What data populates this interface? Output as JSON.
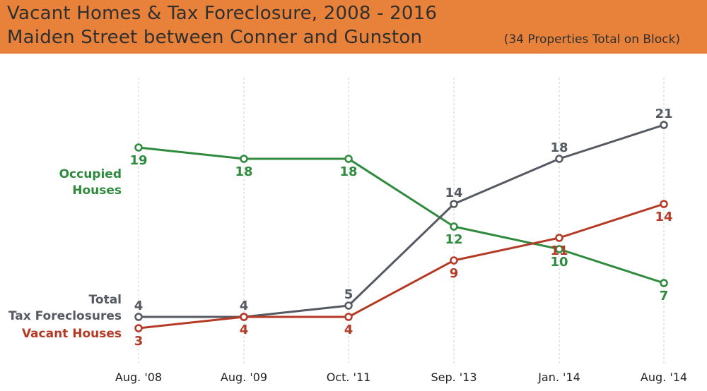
{
  "header": {
    "title": "Vacant Homes & Tax Foreclosure, 2008 - 2016",
    "subtitle": "Maiden Street between Conner and Gunston",
    "note": "(34 Properties Total on Block)"
  },
  "colors": {
    "banner": "#e8823a",
    "occupied": "#2e8b3e",
    "foreclosures": "#555a62",
    "vacant": "#b53a26",
    "grid": "#cfcfcf"
  },
  "chart_data": {
    "type": "line",
    "categories": [
      "Aug. '08",
      "Aug. '09",
      "Oct. '11",
      "Sep. '13",
      "Jan. '14",
      "Aug. '14"
    ],
    "ylim": [
      0,
      22
    ],
    "grid": "vertical dashed at each category",
    "legend": "inline labels at left",
    "series": [
      {
        "name": "Occupied Houses",
        "label_lines": [
          "Occupied",
          "Houses"
        ],
        "color": "#2e8b3e",
        "values": [
          19,
          18,
          18,
          12,
          10,
          7
        ],
        "label_pos": [
          "below",
          "below",
          "below",
          "below",
          "below",
          "below"
        ]
      },
      {
        "name": "Total Tax Foreclosures",
        "label_lines": [
          "Total",
          "Tax Foreclosures"
        ],
        "color": "#555a62",
        "values": [
          4,
          4,
          5,
          14,
          18,
          21
        ],
        "label_pos": [
          "above",
          "above",
          "above",
          "above",
          "above",
          "above"
        ]
      },
      {
        "name": "Vacant Houses",
        "label_lines": [
          "Vacant Houses"
        ],
        "color": "#b53a26",
        "values": [
          3,
          4,
          4,
          9,
          11,
          14
        ],
        "label_pos": [
          "below",
          "below",
          "below",
          "below",
          "below",
          "below"
        ]
      }
    ]
  }
}
